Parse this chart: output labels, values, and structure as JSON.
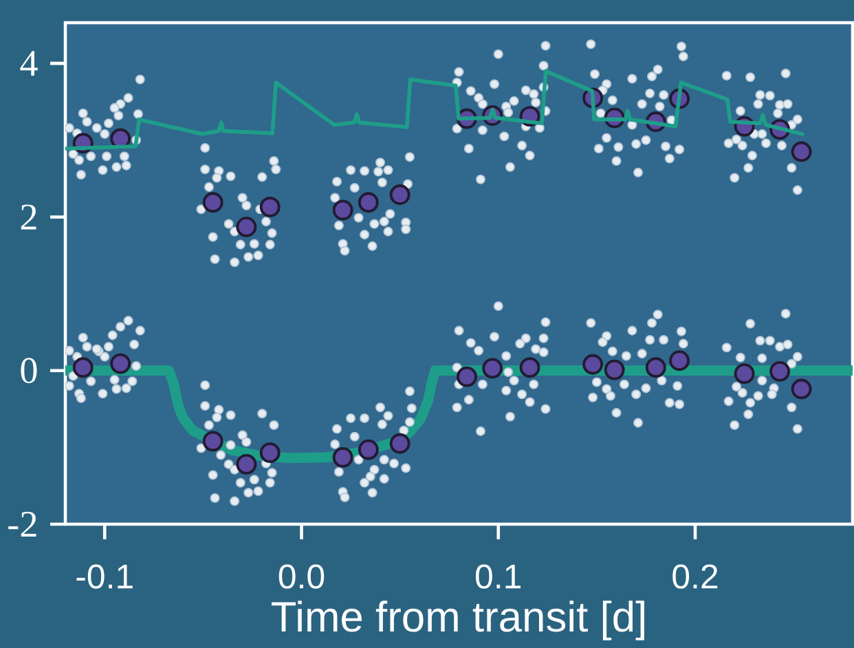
{
  "chart_data": {
    "type": "scatter",
    "xlabel": "Time from transit [d]",
    "xlim": [
      -0.12,
      0.28
    ],
    "ylim": [
      -2,
      4.53
    ],
    "xticks": [
      {
        "value": -0.1,
        "label": "-0.1"
      },
      {
        "value": 0,
        "label": "0.0"
      },
      {
        "value": 0.1,
        "label": "0.1"
      },
      {
        "value": 0.2,
        "label": "0.2"
      }
    ],
    "yticks": [
      4,
      2,
      0,
      -2
    ],
    "series": [
      {
        "type": "line",
        "color": "#1e9e89",
        "marker": "none",
        "x": [
          -0.12,
          -0.0674,
          -0.065,
          -0.0626,
          -0.0601,
          -0.0553,
          -0.036,
          -0.0215,
          -0.0058,
          0.0123,
          0.0305,
          0.0462,
          0.0547,
          0.0607,
          0.0643,
          0.0661,
          0.0679,
          0.28
        ],
        "values": [
          0,
          0,
          -0.17,
          -0.46,
          -0.62,
          -0.78,
          -1.03,
          -1.11,
          -1.14,
          -1.13,
          -1.06,
          -0.94,
          -0.81,
          -0.62,
          -0.39,
          -0.17,
          0,
          0
        ]
      },
      {
        "color": "#e6edf3",
        "marker": "circle",
        "x": [
          -0.088,
          -0.092,
          -0.082,
          -0.111,
          -0.096,
          -0.109,
          -0.103,
          -0.098,
          -0.085,
          -0.118,
          -0.114,
          -0.1,
          -0.084,
          -0.118,
          -0.107,
          -0.095,
          -0.086,
          -0.113,
          -0.112,
          -0.101,
          -0.094,
          -0.089,
          -0.116,
          -0.104,
          -0.049,
          -0.049,
          -0.042,
          -0.043,
          -0.036,
          -0.02,
          -0.014,
          -0.047,
          -0.03,
          -0.028,
          -0.051,
          -0.036,
          -0.041,
          -0.037,
          -0.034,
          -0.018,
          -0.015,
          -0.045,
          -0.031,
          -0.024,
          -0.016,
          -0.044,
          -0.034,
          -0.027,
          -0.022,
          0.055,
          0.056,
          0.04,
          0.044,
          0.025,
          0.032,
          0.018,
          0.055,
          0.041,
          0.027,
          0.017,
          0.052,
          0.029,
          0.037,
          0.042,
          0.047,
          0.053,
          0.019,
          0.035,
          0.032,
          0.042,
          0.021,
          0.022,
          0.036,
          0.1,
          0.08,
          0.124,
          0.123,
          0.086,
          0.098,
          0.114,
          0.09,
          0.111,
          0.119,
          0.123,
          0.104,
          0.079,
          0.105,
          0.08,
          0.092,
          0.108,
          0.118,
          0.104,
          0.112,
          0.085,
          0.116,
          0.079,
          0.124,
          0.106,
          0.091,
          0.147,
          0.181,
          0.178,
          0.168,
          0.193,
          0.155,
          0.153,
          0.177,
          0.184,
          0.194,
          0.158,
          0.165,
          0.173,
          0.15,
          0.164,
          0.183,
          0.191,
          0.155,
          0.175,
          0.148,
          0.157,
          0.17,
          0.187,
          0.192,
          0.16,
          0.171,
          0.246,
          0.228,
          0.216,
          0.233,
          0.238,
          0.243,
          0.247,
          0.223,
          0.234,
          0.252,
          0.249,
          0.234,
          0.24,
          0.221,
          0.224,
          0.232,
          0.239,
          0.217,
          0.228,
          0.227,
          0.249,
          0.22,
          0.252
        ],
        "values": [
          0.65,
          0.57,
          0.52,
          0.43,
          0.46,
          0.31,
          0.25,
          0.31,
          0.34,
          0.26,
          0.18,
          0.18,
          0.06,
          -0.2,
          -0.14,
          -0.12,
          -0.14,
          -0.3,
          -0.36,
          -0.3,
          -0.24,
          -0.23,
          -0.07,
          0.28,
          -0.19,
          -0.46,
          -0.51,
          -0.61,
          -0.58,
          -0.56,
          -0.71,
          -0.71,
          -0.84,
          -0.93,
          -1.01,
          -0.97,
          -1.1,
          -1.22,
          -1.29,
          -1.21,
          -1.33,
          -1.36,
          -1.46,
          -1.42,
          -1.46,
          -1.66,
          -1.7,
          -1.59,
          -1.57,
          -0.27,
          -0.49,
          -0.48,
          -0.59,
          -0.62,
          -0.62,
          -0.76,
          -0.67,
          -0.7,
          -0.86,
          -0.96,
          -0.78,
          -1.16,
          -1.29,
          -1.16,
          -1.21,
          -1.27,
          -1.32,
          -1.38,
          -1.46,
          -1.41,
          -1.58,
          -1.65,
          -1.59,
          0.84,
          0.52,
          0.63,
          0.42,
          0.36,
          0.44,
          0.42,
          0.26,
          0.35,
          0.28,
          0.24,
          0.19,
          0.04,
          -0.02,
          -0.18,
          -0.18,
          -0.13,
          -0.18,
          -0.26,
          -0.31,
          -0.38,
          -0.41,
          -0.48,
          -0.5,
          -0.6,
          -0.79,
          0.62,
          0.73,
          0.62,
          0.52,
          0.51,
          0.45,
          0.37,
          0.4,
          0.4,
          0.35,
          0.25,
          0.19,
          0.22,
          -0.15,
          -0.18,
          -0.13,
          -0.2,
          -0.24,
          -0.23,
          -0.35,
          -0.33,
          -0.31,
          -0.42,
          -0.44,
          -0.55,
          -0.68,
          0.74,
          0.61,
          0.3,
          0.39,
          0.39,
          0.31,
          0.34,
          0.17,
          0.16,
          0.18,
          0.09,
          -0.13,
          -0.23,
          -0.21,
          -0.29,
          -0.33,
          -0.31,
          -0.4,
          -0.42,
          -0.57,
          -0.48,
          -0.71,
          -0.76
        ]
      },
      {
        "color": "#e6edf3",
        "marker": "circle",
        "x": [
          -0.082,
          -0.088,
          -0.092,
          -0.095,
          -0.111,
          -0.093,
          -0.109,
          -0.098,
          -0.104,
          -0.083,
          -0.118,
          -0.114,
          -0.1,
          -0.084,
          -0.116,
          -0.107,
          -0.099,
          -0.09,
          -0.113,
          -0.112,
          -0.101,
          -0.094,
          -0.089,
          -0.049,
          -0.049,
          -0.042,
          -0.043,
          -0.036,
          -0.02,
          -0.014,
          -0.013,
          -0.047,
          -0.03,
          -0.028,
          -0.051,
          -0.021,
          -0.018,
          -0.037,
          -0.034,
          -0.015,
          -0.045,
          -0.031,
          -0.024,
          -0.016,
          -0.044,
          -0.034,
          -0.027,
          -0.022,
          0.055,
          0.04,
          0.025,
          0.032,
          0.039,
          0.044,
          0.018,
          0.041,
          0.054,
          0.027,
          0.017,
          0.045,
          0.029,
          0.037,
          0.042,
          0.053,
          0.053,
          0.019,
          0.032,
          0.044,
          0.021,
          0.022,
          0.036,
          0.124,
          0.1,
          0.123,
          0.08,
          0.079,
          0.086,
          0.098,
          0.09,
          0.114,
          0.118,
          0.108,
          0.123,
          0.119,
          0.124,
          0.104,
          0.092,
          0.105,
          0.079,
          0.092,
          0.114,
          0.121,
          0.103,
          0.112,
          0.085,
          0.116,
          0.106,
          0.091,
          0.147,
          0.193,
          0.194,
          0.149,
          0.181,
          0.178,
          0.168,
          0.155,
          0.153,
          0.177,
          0.184,
          0.158,
          0.173,
          0.182,
          0.152,
          0.168,
          0.188,
          0.155,
          0.175,
          0.151,
          0.161,
          0.17,
          0.185,
          0.192,
          0.187,
          0.16,
          0.171,
          0.216,
          0.228,
          0.246,
          0.233,
          0.238,
          0.243,
          0.247,
          0.232,
          0.223,
          0.242,
          0.252,
          0.249,
          0.234,
          0.23,
          0.236,
          0.244,
          0.221,
          0.224,
          0.217,
          0.229,
          0.227,
          0.249,
          0.22,
          0.252
        ],
        "values": [
          3.79,
          3.55,
          3.47,
          3.42,
          3.35,
          3.32,
          3.24,
          3.22,
          3.16,
          3.34,
          3.16,
          3.09,
          3.08,
          3.0,
          2.82,
          2.79,
          2.79,
          2.79,
          2.74,
          2.55,
          2.61,
          2.65,
          2.67,
          2.9,
          2.62,
          2.6,
          2.51,
          2.53,
          2.52,
          2.73,
          2.62,
          2.39,
          2.25,
          2.15,
          2.1,
          2.1,
          1.94,
          1.91,
          1.81,
          1.79,
          1.74,
          1.64,
          1.65,
          1.64,
          1.45,
          1.41,
          1.48,
          1.5,
          2.78,
          2.71,
          2.61,
          2.6,
          2.59,
          2.61,
          2.46,
          2.45,
          2.43,
          2.38,
          2.25,
          2.04,
          1.99,
          1.91,
          1.94,
          1.93,
          1.84,
          1.89,
          1.77,
          1.81,
          1.65,
          1.56,
          1.62,
          4.23,
          4.12,
          3.97,
          3.89,
          3.75,
          3.64,
          3.73,
          3.55,
          3.65,
          3.6,
          3.51,
          3.69,
          3.49,
          3.38,
          3.44,
          3.47,
          3.36,
          3.15,
          3.13,
          3.18,
          3.16,
          3.05,
          2.93,
          2.89,
          2.8,
          2.65,
          2.49,
          4.25,
          4.22,
          4.09,
          3.86,
          3.92,
          3.83,
          3.8,
          3.73,
          3.65,
          3.61,
          3.59,
          3.52,
          3.47,
          3.44,
          3.35,
          3.2,
          3.26,
          3.03,
          3.0,
          2.89,
          2.91,
          2.95,
          2.92,
          2.88,
          2.76,
          2.73,
          2.58,
          3.84,
          3.82,
          3.87,
          3.59,
          3.58,
          3.46,
          3.47,
          3.47,
          3.38,
          3.35,
          3.27,
          3.2,
          3.08,
          3.08,
          2.96,
          2.93,
          3.01,
          2.93,
          2.96,
          2.8,
          2.64,
          2.64,
          2.51,
          2.35
        ]
      },
      {
        "color": "#5b4a9e",
        "marker": "circle",
        "x": [
          -0.111,
          -0.092,
          -0.045,
          -0.028,
          -0.016,
          0.021,
          0.034,
          0.05,
          0.084,
          0.097,
          0.116,
          0.148,
          0.159,
          0.18,
          0.192,
          0.225,
          0.243,
          0.254
        ],
        "values": [
          0.04,
          0.09,
          -0.92,
          -1.22,
          -1.07,
          -1.13,
          -1.03,
          -0.95,
          -0.08,
          0.03,
          0.04,
          0.08,
          0.01,
          0.04,
          0.13,
          -0.04,
          -0.01,
          -0.24
        ]
      },
      {
        "color": "#5b4a9e",
        "marker": "circle",
        "x": [
          -0.111,
          -0.092,
          -0.045,
          -0.028,
          -0.016,
          0.021,
          0.034,
          0.05,
          0.084,
          0.097,
          0.116,
          0.148,
          0.159,
          0.18,
          0.192,
          0.225,
          0.243,
          0.254
        ],
        "values": [
          2.96,
          3.02,
          2.19,
          1.87,
          2.13,
          2.09,
          2.19,
          2.29,
          3.28,
          3.32,
          3.31,
          3.55,
          3.29,
          3.24,
          3.54,
          3.18,
          3.14,
          2.85
        ]
      },
      {
        "type": "line",
        "color": "#1e9e89",
        "marker": "none",
        "x": [
          -0.12,
          -0.0843,
          -0.0825,
          -0.0505,
          -0.042,
          -0.0408,
          -0.0396,
          -0.0148,
          -0.013,
          0.0166,
          0.0268,
          0.0281,
          0.0293,
          0.0535,
          0.0553,
          0.0784,
          0.0798,
          0.0957,
          0.0971,
          0.0985,
          0.1221,
          0.1241,
          0.1477,
          0.1487,
          0.1645,
          0.1657,
          0.167,
          0.19,
          0.1928,
          0.2164,
          0.2178,
          0.233,
          0.2344,
          0.2358,
          0.2545
        ],
        "values": [
          2.89,
          2.92,
          3.27,
          3.08,
          3.12,
          3.23,
          3.12,
          3.09,
          3.75,
          3.2,
          3.23,
          3.34,
          3.23,
          3.17,
          3.79,
          3.71,
          3.28,
          3.29,
          3.4,
          3.29,
          3.22,
          3.9,
          3.64,
          3.27,
          3.27,
          3.38,
          3.27,
          3.18,
          3.75,
          3.53,
          3.24,
          3.22,
          3.33,
          3.2,
          3.08
        ]
      }
    ]
  }
}
